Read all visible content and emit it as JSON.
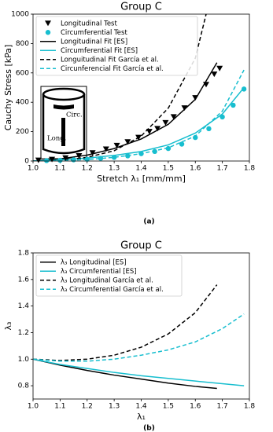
{
  "chart_data": [
    {
      "type": "line",
      "title": "Group C",
      "x_label": "Stretch λ₁ [mm/mm]",
      "y_label": "Cauchy Stress [kPa]",
      "caption": "(a)",
      "xlim": [
        1.0,
        1.8
      ],
      "ylim": [
        0,
        1000
      ],
      "xticks": [
        {
          "value": 1,
          "label": "1.0"
        },
        1.1,
        1.2,
        1.3,
        1.4,
        1.5,
        1.6,
        1.7,
        1.8
      ],
      "yticks": [
        0,
        200,
        400,
        600,
        800,
        1000
      ],
      "legend": "upper left",
      "annotations": [
        "Circ.",
        "Long."
      ],
      "series": [
        {
          "name": "Longitudinal Test",
          "color": "#000000",
          "marker": "triangle-down",
          "x": [
            1.02,
            1.07,
            1.12,
            1.17,
            1.22,
            1.27,
            1.31,
            1.35,
            1.39,
            1.43,
            1.46,
            1.49,
            1.52,
            1.56,
            1.6,
            1.64,
            1.67,
            1.69
          ],
          "values": [
            5,
            10,
            20,
            35,
            55,
            80,
            105,
            130,
            160,
            200,
            220,
            260,
            300,
            360,
            430,
            520,
            590,
            630
          ]
        },
        {
          "name": "Circumferential Test",
          "color": "#17becf",
          "marker": "circle",
          "x": [
            1.05,
            1.1,
            1.15,
            1.2,
            1.25,
            1.3,
            1.35,
            1.4,
            1.45,
            1.5,
            1.55,
            1.6,
            1.65,
            1.7,
            1.74,
            1.78
          ],
          "values": [
            3,
            5,
            8,
            12,
            18,
            25,
            35,
            50,
            65,
            85,
            115,
            160,
            220,
            300,
            380,
            490
          ]
        },
        {
          "name": "Longitudinal Fit [ES]",
          "color": "#000000",
          "dash": "solid",
          "x": [
            1.0,
            1.1,
            1.2,
            1.3,
            1.4,
            1.5,
            1.6,
            1.68
          ],
          "values": [
            0,
            15,
            40,
            85,
            150,
            250,
            420,
            670
          ]
        },
        {
          "name": "Circumferential Fit [ES]",
          "color": "#17becf",
          "dash": "solid",
          "x": [
            1.0,
            1.1,
            1.2,
            1.3,
            1.4,
            1.5,
            1.6,
            1.7,
            1.78
          ],
          "values": [
            0,
            8,
            20,
            38,
            65,
            110,
            190,
            320,
            500
          ]
        },
        {
          "name": "Longuitudinal Fit García et al.",
          "color": "#000000",
          "dash": "dashed",
          "x": [
            1.0,
            1.1,
            1.2,
            1.3,
            1.4,
            1.5,
            1.6,
            1.64
          ],
          "values": [
            0,
            5,
            25,
            70,
            170,
            360,
            700,
            1000
          ]
        },
        {
          "name": "Circunferencial Fit García et al.",
          "color": "#17becf",
          "dash": "dashed",
          "x": [
            1.0,
            1.1,
            1.2,
            1.3,
            1.4,
            1.5,
            1.6,
            1.7,
            1.78
          ],
          "values": [
            0,
            3,
            10,
            25,
            50,
            90,
            170,
            340,
            620
          ]
        }
      ]
    },
    {
      "type": "line",
      "title": "Group C",
      "x_label": "λ₁",
      "y_label": "λ₃",
      "caption": "(b)",
      "xlim": [
        1.0,
        1.8
      ],
      "ylim": [
        0.7,
        1.8
      ],
      "xticks": [
        {
          "value": 1,
          "label": "1.0"
        },
        1.1,
        1.2,
        1.3,
        1.4,
        1.5,
        1.6,
        1.7,
        1.8
      ],
      "yticks": [
        0.8,
        {
          "value": 1,
          "label": "1.0"
        },
        1.2,
        1.4,
        1.6,
        1.8
      ],
      "legend": "upper left",
      "series": [
        {
          "name": "λ₃ Longitudinal [ES]",
          "color": "#000000",
          "dash": "solid",
          "x": [
            1.0,
            1.1,
            1.2,
            1.3,
            1.4,
            1.5,
            1.6,
            1.68
          ],
          "values": [
            1.0,
            0.955,
            0.915,
            0.88,
            0.85,
            0.82,
            0.795,
            0.78
          ]
        },
        {
          "name": "λ₃ Circumferential [ES]",
          "color": "#17becf",
          "dash": "solid",
          "x": [
            1.0,
            1.1,
            1.2,
            1.3,
            1.4,
            1.5,
            1.6,
            1.7,
            1.78
          ],
          "values": [
            1.0,
            0.96,
            0.93,
            0.9,
            0.875,
            0.855,
            0.835,
            0.815,
            0.8
          ]
        },
        {
          "name": "λ₃ Longitudinal García et al.",
          "color": "#000000",
          "dash": "dashed",
          "x": [
            1.0,
            1.1,
            1.2,
            1.3,
            1.4,
            1.5,
            1.6,
            1.68
          ],
          "values": [
            1.0,
            0.99,
            1.0,
            1.03,
            1.09,
            1.19,
            1.35,
            1.56
          ]
        },
        {
          "name": "λ₃ Circumferential García et al.",
          "color": "#17becf",
          "dash": "dashed",
          "x": [
            1.0,
            1.1,
            1.2,
            1.3,
            1.4,
            1.5,
            1.6,
            1.7,
            1.78
          ],
          "values": [
            1.0,
            0.985,
            0.985,
            1.0,
            1.03,
            1.07,
            1.13,
            1.23,
            1.34
          ]
        }
      ]
    }
  ]
}
